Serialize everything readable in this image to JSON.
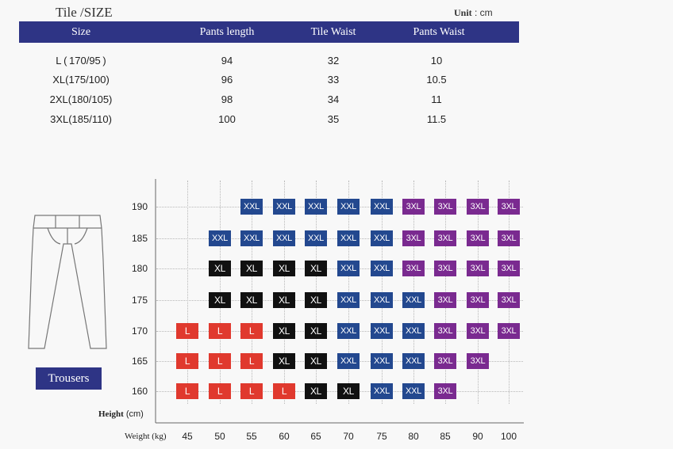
{
  "title": "Tile /SIZE",
  "unit": {
    "label": "Unit",
    "sep": " :",
    "value": " cm"
  },
  "size_table": {
    "headers": [
      "Size",
      "Pants length",
      "Tile Waist",
      "Pants Waist"
    ],
    "rows": [
      [
        "L ( 170/95 )",
        "94",
        "32",
        "10"
      ],
      [
        "XL(175/100)",
        "96",
        "33",
        "10.5"
      ],
      [
        "2XL(180/105)",
        "98",
        "34",
        "11"
      ],
      [
        "3XL(185/110)",
        "100",
        "35",
        "11.5"
      ]
    ]
  },
  "product_label": "Trousers",
  "chart_data": {
    "type": "table",
    "x_axis": {
      "label_main": "Weight",
      "label_unit": "(kg)",
      "ticks": [
        45,
        50,
        55,
        60,
        65,
        70,
        75,
        80,
        85,
        90,
        100
      ]
    },
    "y_axis": {
      "label_main": "Height",
      "label_unit": "(cm)",
      "ticks": [
        190,
        185,
        180,
        175,
        170,
        165,
        160
      ]
    },
    "colors": {
      "L": "#e0392e",
      "XL": "#111111",
      "XXL": "#23488f",
      "3XL": "#7a2a90"
    },
    "grid": [
      [
        "",
        "",
        "XXL",
        "XXL",
        "XXL",
        "XXL",
        "XXL",
        "3XL",
        "3XL",
        "3XL",
        "3XL"
      ],
      [
        "",
        "XXL",
        "XXL",
        "XXL",
        "XXL",
        "XXL",
        "XXL",
        "3XL",
        "3XL",
        "3XL",
        "3XL"
      ],
      [
        "",
        "XL",
        "XL",
        "XL",
        "XL",
        "XXL",
        "XXL",
        "3XL",
        "3XL",
        "3XL",
        "3XL"
      ],
      [
        "",
        "XL",
        "XL",
        "XL",
        "XL",
        "XXL",
        "XXL",
        "XXL",
        "3XL",
        "3XL",
        "3XL"
      ],
      [
        "L",
        "L",
        "L",
        "XL",
        "XL",
        "XXL",
        "XXL",
        "XXL",
        "3XL",
        "3XL",
        "3XL"
      ],
      [
        "L",
        "L",
        "L",
        "XL",
        "XL",
        "XXL",
        "XXL",
        "XXL",
        "3XL",
        "3XL",
        ""
      ],
      [
        "L",
        "L",
        "L",
        "L",
        "XL",
        "XL",
        "XXL",
        "XXL",
        "3XL",
        "",
        ""
      ]
    ]
  }
}
